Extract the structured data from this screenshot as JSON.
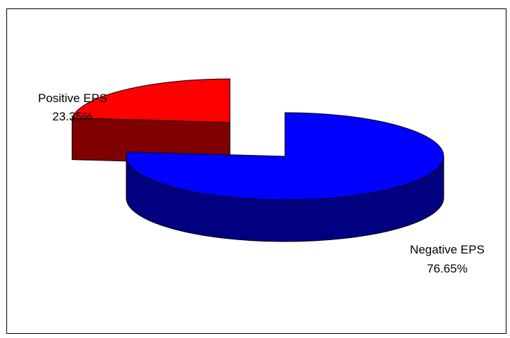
{
  "chart_data": {
    "type": "pie",
    "three_d": true,
    "exploded": true,
    "slices": [
      {
        "label": "Negative EPS",
        "percent_label": "76.65%",
        "value": 76.65,
        "top_color": "#0000FF",
        "side_color": "#000080"
      },
      {
        "label": "Positive EPS",
        "percent_label": "23.35%",
        "value": 23.35,
        "top_color": "#FF0000",
        "side_color": "#800000"
      }
    ],
    "legend": "none",
    "grid": false
  }
}
